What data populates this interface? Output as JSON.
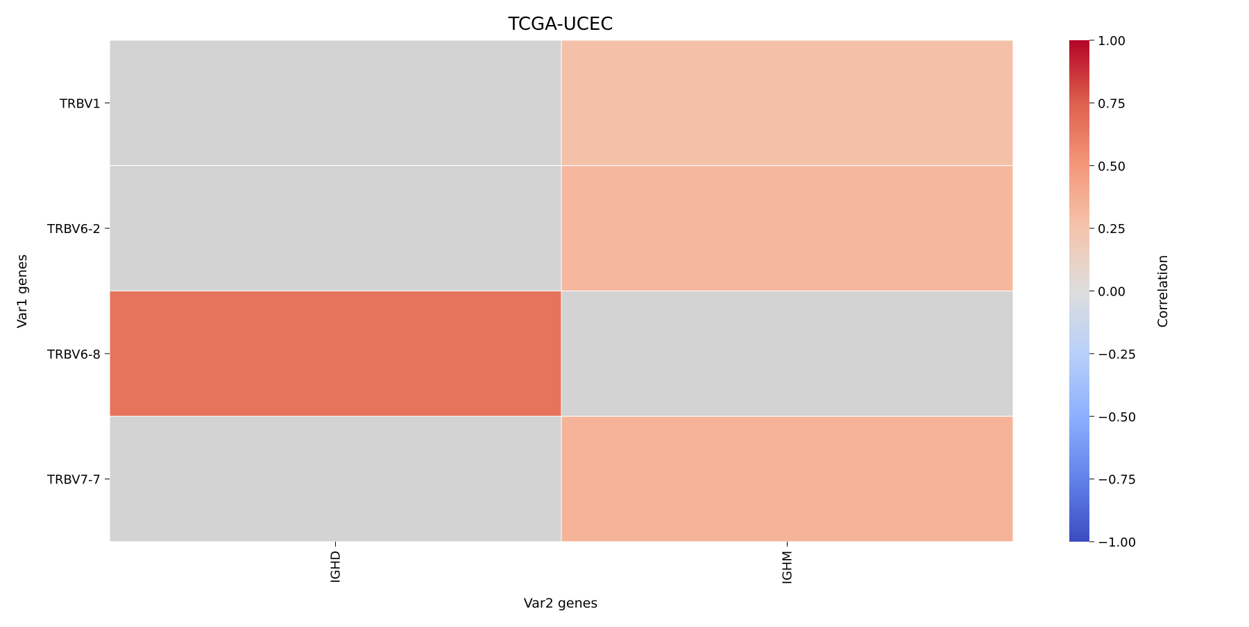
{
  "chart_data": {
    "type": "heatmap",
    "title": "TCGA-UCEC",
    "xlabel": "Var2 genes",
    "ylabel": "Var1 genes",
    "x_categories": [
      "IGHD",
      "IGHM"
    ],
    "y_categories": [
      "TRBV1",
      "TRBV6-2",
      "TRBV6-8",
      "TRBV7-7"
    ],
    "values": [
      [
        0.0,
        0.27
      ],
      [
        0.0,
        0.32
      ],
      [
        0.66,
        0.0
      ],
      [
        0.0,
        0.34
      ]
    ],
    "colorbar": {
      "label": "Correlation",
      "vmin": -1.0,
      "vmax": 1.0,
      "colormap": "coolwarm",
      "ticks": [
        "1.00",
        "0.75",
        "0.50",
        "0.25",
        "0.00",
        "−0.25",
        "−0.50",
        "−0.75",
        "−1.00"
      ]
    },
    "missing_color": "#d3d3d3",
    "grid": false
  }
}
